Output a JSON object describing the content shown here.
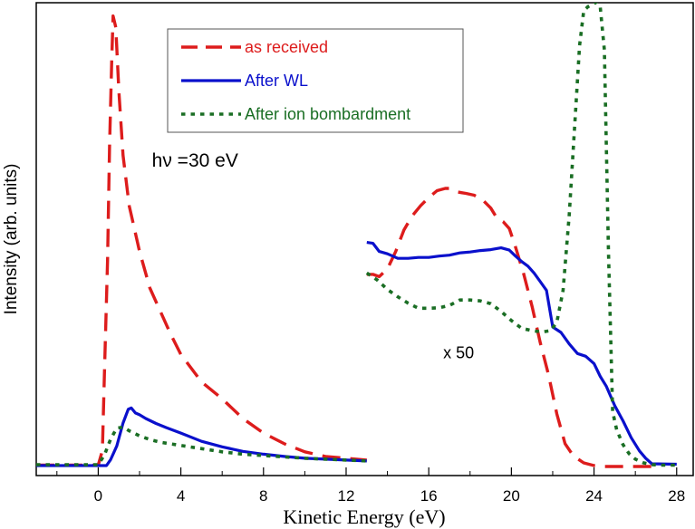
{
  "chart_data": {
    "type": "line",
    "xlabel": "Kinetic Energy (eV)",
    "ylabel": "Intensity (arb. units)",
    "xlim": [
      -3,
      28.8
    ],
    "ylim": [
      0,
      100
    ],
    "xticks": [
      0,
      4,
      8,
      12,
      16,
      20,
      24,
      28
    ],
    "xtick_labels": [
      "0",
      "4",
      "8",
      "12",
      "16",
      "20",
      "24",
      "28"
    ],
    "grid": false,
    "legend_position": "top-center",
    "annotations": [
      {
        "text": "hν =30 eV",
        "x": 2.6,
        "y": 65.5
      },
      {
        "text": "x 50",
        "x": 16.7,
        "y": 23.7
      }
    ],
    "series": [
      {
        "name": "as received",
        "color": "#dd1c1c",
        "style": "dashed",
        "x": [
          -3,
          0,
          0.2,
          0.3,
          0.45,
          0.55,
          0.65,
          0.72,
          0.85,
          1.0,
          1.2,
          1.5,
          2.0,
          2.5,
          3.0,
          3.5,
          4.0,
          5.0,
          6.0,
          7.0,
          8.0,
          9.0,
          10.0,
          11.0,
          13.0,
          null,
          13.0,
          13.3,
          13.6,
          14.0,
          14.4,
          14.8,
          15.2,
          15.6,
          16.0,
          16.4,
          16.8,
          17.0,
          17.4,
          17.8,
          18.2,
          18.6,
          19.0,
          19.3,
          19.6,
          19.9,
          20.2,
          20.6,
          21.0,
          21.4,
          21.8,
          22.2,
          22.6,
          23.0,
          23.5,
          24.0,
          24.5,
          25.0,
          26.0,
          27.0
        ],
        "y": [
          0.3,
          0.3,
          3.5,
          20,
          45,
          70,
          88,
          98.5,
          96,
          82,
          68,
          57,
          47,
          39,
          34,
          29,
          24.5,
          18.5,
          14.8,
          10.5,
          7.3,
          5,
          3.2,
          2.2,
          1.4,
          null,
          42,
          42,
          41.5,
          43.2,
          47,
          51.7,
          54.8,
          57,
          58.8,
          60.3,
          60.8,
          60.8,
          60,
          59.7,
          59.3,
          58.3,
          56.5,
          54.3,
          53.5,
          52,
          48,
          42,
          35,
          27,
          20,
          11.5,
          5,
          2.3,
          0.8,
          0.2,
          0,
          0,
          0,
          0
        ]
      },
      {
        "name": "After WL",
        "color": "#0a10cc",
        "style": "solid",
        "x": [
          -3,
          0.4,
          0.6,
          0.9,
          1.2,
          1.45,
          1.6,
          1.8,
          2.0,
          2.3,
          2.8,
          3.3,
          4.0,
          5.0,
          6.0,
          7.0,
          8.0,
          9.0,
          10.0,
          11.0,
          12.0,
          13.0,
          null,
          13.0,
          13.3,
          13.6,
          14.0,
          14.5,
          15.0,
          15.5,
          16.0,
          16.5,
          17.0,
          17.5,
          18.0,
          18.5,
          19.0,
          19.5,
          19.9,
          20.2,
          20.5,
          20.8,
          21.1,
          21.4,
          21.7,
          22.0,
          22.4,
          22.8,
          23.2,
          23.6,
          24.0,
          24.3,
          24.6,
          25.0,
          25.4,
          25.8,
          26.2,
          26.5,
          26.8,
          28.0
        ],
        "y": [
          0.2,
          0.2,
          1.5,
          4.5,
          9.5,
          12.5,
          12.8,
          11.7,
          11.3,
          10.5,
          9.4,
          8.5,
          7.3,
          5.5,
          4.3,
          3.3,
          2.7,
          2.2,
          1.8,
          1.6,
          1.4,
          1.2,
          null,
          49,
          48.8,
          47,
          46.5,
          45.5,
          45.5,
          45.7,
          45.7,
          46,
          46.2,
          46.7,
          46.9,
          47.2,
          47.4,
          47.8,
          47.3,
          46,
          44.8,
          43.8,
          42.3,
          40.4,
          38.5,
          30.5,
          29.3,
          26.8,
          24.7,
          24.1,
          22.5,
          19.7,
          17.5,
          13.3,
          10,
          6.3,
          3.4,
          1.8,
          0.6,
          0.5
        ]
      },
      {
        "name": "After ion bombardment",
        "color": "#1a6e24",
        "style": "dotted",
        "x": [
          -3,
          0,
          0.3,
          0.6,
          0.9,
          1.2,
          1.5,
          2.0,
          2.5,
          3.0,
          4.0,
          5.0,
          6.0,
          7.0,
          8.0,
          9.0,
          10.0,
          11.0,
          12.0,
          13.0,
          null,
          13.0,
          13.5,
          14.0,
          14.5,
          15.0,
          15.5,
          16.0,
          16.5,
          17.0,
          17.5,
          18.0,
          18.5,
          19.0,
          19.5,
          20.0,
          20.5,
          21.0,
          21.5,
          21.9,
          22.2,
          22.5,
          22.8,
          23.1,
          23.3,
          23.5,
          23.7,
          23.9,
          24.1,
          24.3,
          24.5,
          24.7,
          24.9,
          25.1,
          25.4,
          25.7,
          26.0,
          26.4,
          26.8,
          27.3,
          28.0
        ],
        "y": [
          0.4,
          0.4,
          2.5,
          6,
          8.4,
          8.6,
          7.8,
          6.7,
          5.9,
          5.3,
          4.6,
          3.9,
          3.2,
          2.7,
          2.4,
          2.1,
          1.8,
          1.6,
          1.4,
          1.2,
          null,
          42.3,
          40.8,
          38.7,
          37.1,
          35.7,
          34.6,
          34.6,
          34.7,
          35.2,
          36.4,
          36.4,
          36.2,
          35.6,
          33.9,
          31.9,
          30.2,
          29.7,
          29.4,
          29.7,
          31.5,
          38.5,
          55,
          77,
          92,
          99.6,
          100.5,
          101,
          101.5,
          100.5,
          91,
          47,
          12,
          8,
          4.8,
          2.8,
          1.6,
          0.8,
          0.4,
          0.3,
          0.3
        ]
      }
    ]
  }
}
